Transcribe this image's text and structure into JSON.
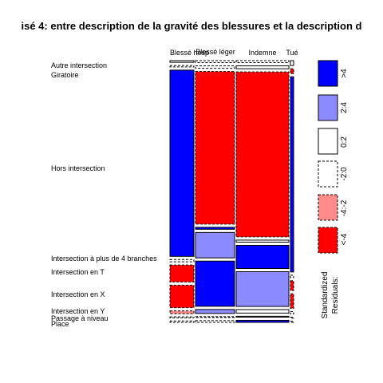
{
  "chart_data": {
    "type": "mosaic",
    "title": "isé 4: entre description de la gravité des blessures et la description d",
    "columns": [
      "Blessé hospitalisé",
      "Blessé léger",
      "Indemne",
      "Tué"
    ],
    "column_labels_visible": [
      "Blessé hosp",
      "Blessé léger",
      "Indemne",
      "Tué"
    ],
    "rows": [
      {
        "label": "Autre intersection",
        "cells": [
          {
            "value": 0.6,
            "shade": "white"
          },
          {
            "value": 0.7,
            "shade": "dash"
          },
          {
            "value": 0.7,
            "shade": "dash"
          },
          {
            "value": 0.1,
            "shade": "white"
          }
        ]
      },
      {
        "label": "Giratoire",
        "cells": [
          {
            "value": 0.5,
            "shade": "dash"
          },
          {
            "value": 0.9,
            "shade": "dash"
          },
          {
            "value": 1.0,
            "shade": "white"
          },
          {
            "value": 0.1,
            "shade": "red"
          }
        ]
      },
      {
        "label": "Hors intersection",
        "cells": [
          {
            "value": 66.0,
            "shade": "blue"
          },
          {
            "value": 54.0,
            "shade": "red"
          },
          {
            "value": 57.0,
            "shade": "red"
          },
          {
            "value": 4.0,
            "shade": "blue"
          }
        ]
      },
      {
        "label": "Intersection à plus de 4 branches",
        "cells": [
          {
            "value": 0.8,
            "shade": "dash"
          },
          {
            "value": 0.7,
            "shade": "blue"
          },
          {
            "value": 0.7,
            "shade": "white"
          },
          {
            "value": 0.05,
            "shade": "dash"
          }
        ]
      },
      {
        "label": "Intersection en T",
        "cells": [
          {
            "value": 6.0,
            "shade": "red"
          },
          {
            "value": 9.0,
            "shade": "lightblue"
          },
          {
            "value": 8.0,
            "shade": "blue"
          },
          {
            "value": 0.2,
            "shade": "red"
          }
        ]
      },
      {
        "label": "Intersection en X",
        "cells": [
          {
            "value": 8.0,
            "shade": "red"
          },
          {
            "value": 16.0,
            "shade": "blue"
          },
          {
            "value": 12.0,
            "shade": "lightblue"
          },
          {
            "value": 0.3,
            "shade": "red"
          }
        ]
      },
      {
        "label": "Intersection en Y",
        "cells": [
          {
            "value": 1.0,
            "shade": "lightred"
          },
          {
            "value": 1.4,
            "shade": "lightblue"
          },
          {
            "value": 1.2,
            "shade": "white"
          },
          {
            "value": 0.05,
            "shade": "dash"
          }
        ]
      },
      {
        "label": "Passage à niveau",
        "cells": [
          {
            "value": 0.3,
            "shade": "dash"
          },
          {
            "value": 0.3,
            "shade": "dash"
          },
          {
            "value": 0.3,
            "shade": "white"
          },
          {
            "value": 0.02,
            "shade": "dash"
          }
        ]
      },
      {
        "label": "Place",
        "cells": [
          {
            "value": 0.5,
            "shade": "dash"
          },
          {
            "value": 0.6,
            "shade": "dash"
          },
          {
            "value": 0.7,
            "shade": "blue"
          },
          {
            "value": 0.02,
            "shade": "dash"
          }
        ]
      }
    ],
    "legend": {
      "items": [
        {
          "label": ">4",
          "shade": "blue"
        },
        {
          "label": "2:4",
          "shade": "lightblue"
        },
        {
          "label": "0:2",
          "shade": "white"
        },
        {
          "label": "-2:0",
          "shade": "dash"
        },
        {
          "label": "-4:-2",
          "shade": "lightred"
        },
        {
          "label": "<-4",
          "shade": "red"
        }
      ],
      "title_line1": "Standardized",
      "title_line2": "Residuals:"
    },
    "colors": {
      "blue": "#0000ff",
      "lightblue": "#8b8bff",
      "red": "#ff0000",
      "lightred": "#ff8b8b",
      "white": "#ffffff",
      "dash": "#ffffff"
    }
  }
}
